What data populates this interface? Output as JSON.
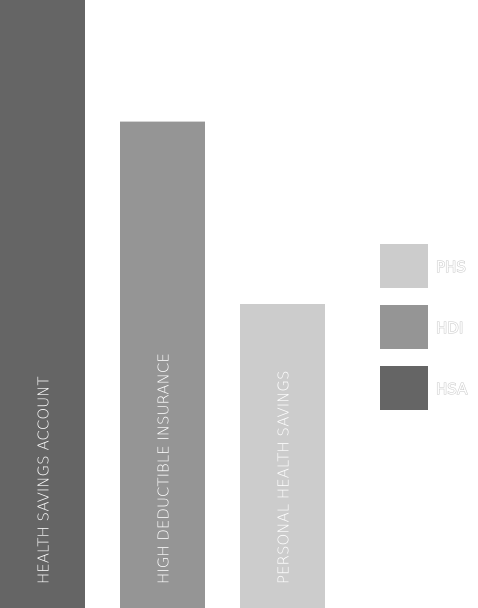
{
  "chart_data": {
    "type": "bar",
    "categories": [
      "HEALTH SAVINGS ACCOUNT",
      "HIGH DEDUCTIBLE INSURANCE",
      "PERSONAL HEALTH SAVINGS"
    ],
    "values": [
      100,
      80,
      50
    ],
    "colors": [
      "#656565",
      "#959595",
      "#cccccc"
    ],
    "ylim": [
      0,
      100
    ],
    "grid": false,
    "legend_position": "right",
    "legend": [
      {
        "label": "PHS",
        "color": "#cccccc"
      },
      {
        "label": "HDI",
        "color": "#959595"
      },
      {
        "label": "HSA",
        "color": "#656565"
      }
    ]
  }
}
